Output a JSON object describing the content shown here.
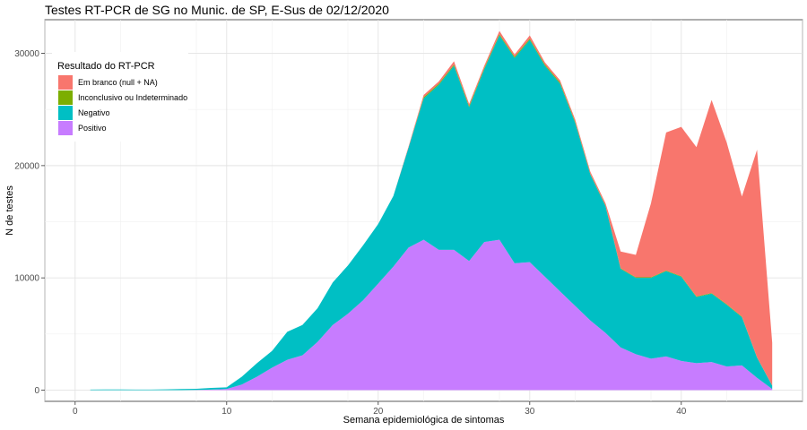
{
  "chart_data": {
    "type": "area",
    "stacked": true,
    "title": "Testes RT-PCR de SG no Munic. de SP, E-Sus de 02/12/2020",
    "xlabel": "Semana epidemiológica de sintomas",
    "ylabel": "N de testes",
    "xlim": [
      -2,
      48
    ],
    "ylim": [
      -1000,
      33000
    ],
    "x_ticks": [
      0,
      10,
      20,
      30,
      40
    ],
    "x_tick_labels": [
      "0",
      "10",
      "20",
      "30",
      "40"
    ],
    "y_ticks": [
      0,
      10000,
      20000,
      30000
    ],
    "y_tick_labels": [
      "0",
      "10000",
      "20000",
      "30000"
    ],
    "grid": true,
    "legend": {
      "title": "Resultado do RT-PCR",
      "position": "top-left inside"
    },
    "x": [
      1,
      2,
      3,
      4,
      5,
      6,
      7,
      8,
      9,
      10,
      11,
      12,
      13,
      14,
      15,
      16,
      17,
      18,
      19,
      20,
      21,
      22,
      23,
      24,
      25,
      26,
      27,
      28,
      29,
      30,
      31,
      32,
      33,
      34,
      35,
      36,
      37,
      38,
      39,
      40,
      41,
      42,
      43,
      44,
      45,
      46
    ],
    "series": [
      {
        "name": "Positivo",
        "color": "#C77CFF",
        "values": [
          0,
          0,
          0,
          0,
          0,
          0,
          0,
          20,
          50,
          100,
          500,
          1200,
          2000,
          2700,
          3100,
          4300,
          5800,
          6800,
          8000,
          9500,
          11000,
          12700,
          13400,
          12500,
          12500,
          11500,
          13200,
          13400,
          11300,
          11400,
          10100,
          8800,
          7500,
          6200,
          5100,
          3800,
          3200,
          2800,
          3000,
          2600,
          2400,
          2500,
          2100,
          2200,
          1100,
          100
        ]
      },
      {
        "name": "Negativo",
        "color": "#00BFC4",
        "values": [
          50,
          60,
          60,
          50,
          50,
          70,
          100,
          100,
          150,
          150,
          700,
          1200,
          1500,
          2500,
          2700,
          3000,
          3800,
          4300,
          4900,
          5300,
          6300,
          8900,
          12600,
          14700,
          16400,
          13700,
          15400,
          18200,
          18300,
          19800,
          18800,
          18500,
          16300,
          13000,
          11300,
          7000,
          6800,
          7200,
          7600,
          7500,
          5900,
          6100,
          5500,
          4300,
          1800,
          300
        ]
      },
      {
        "name": "Inconclusivo ou Indeterminado",
        "color": "#7CAE00",
        "values": [
          0,
          0,
          0,
          0,
          0,
          0,
          0,
          0,
          0,
          0,
          0,
          0,
          0,
          0,
          0,
          0,
          0,
          0,
          0,
          0,
          0,
          0,
          100,
          100,
          100,
          100,
          100,
          100,
          100,
          100,
          100,
          100,
          100,
          50,
          50,
          50,
          50,
          50,
          50,
          50,
          50,
          50,
          50,
          50,
          20,
          10
        ]
      },
      {
        "name": "Em branco (null + NA)",
        "color": "#F8766D",
        "values": [
          0,
          0,
          0,
          0,
          0,
          0,
          0,
          0,
          0,
          0,
          0,
          0,
          0,
          0,
          0,
          0,
          0,
          0,
          0,
          0,
          0,
          100,
          200,
          200,
          300,
          200,
          200,
          300,
          200,
          300,
          200,
          200,
          200,
          200,
          200,
          1500,
          2000,
          6600,
          12300,
          13300,
          13300,
          17200,
          14400,
          10700,
          18500,
          3800
        ]
      }
    ]
  }
}
